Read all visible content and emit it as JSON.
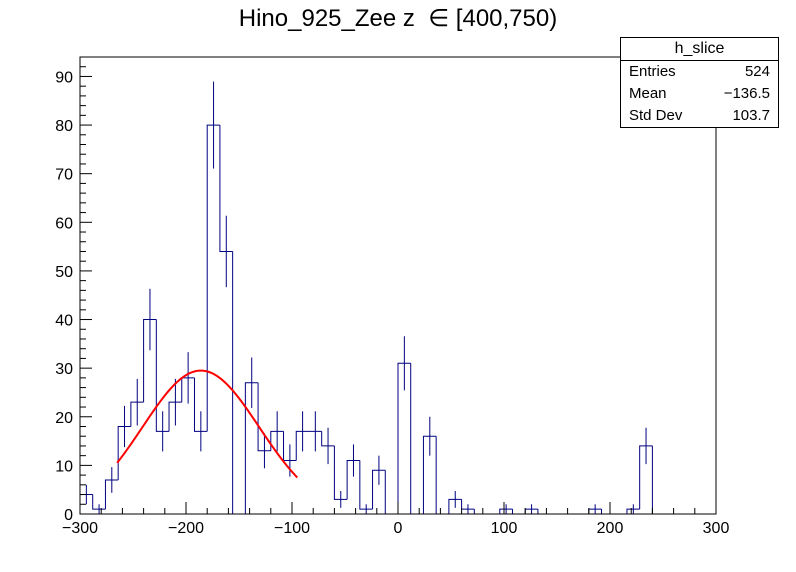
{
  "chart_data": {
    "type": "bar",
    "title": "Hino_925_Zee z  ∈ [400,750)",
    "xlabel": "",
    "ylabel": "",
    "xlim": [
      -300,
      300
    ],
    "ylim": [
      0,
      94
    ],
    "bin_width": 12,
    "bins_low_edge": [
      -300,
      -288,
      -276,
      -264,
      -252,
      -240,
      -228,
      -216,
      -204,
      -192,
      -180,
      -168,
      -156,
      -144,
      -132,
      -120,
      -108,
      -96,
      -84,
      -72,
      -60,
      -48,
      -36,
      -24,
      -12,
      0,
      12,
      24,
      36,
      48,
      60,
      72,
      84,
      96,
      108,
      120,
      132,
      144,
      156,
      168,
      180,
      192,
      204,
      216,
      228,
      240,
      252,
      264,
      276,
      288
    ],
    "values": [
      4,
      1,
      7,
      18,
      23,
      40,
      17,
      23,
      28,
      17,
      80,
      54,
      0,
      27,
      13,
      17,
      11,
      17,
      17,
      14,
      3,
      11,
      1,
      9,
      0,
      31,
      0,
      16,
      0,
      3,
      1,
      0,
      0,
      1,
      0,
      1,
      0,
      0,
      0,
      0,
      1,
      0,
      0,
      1,
      14,
      0,
      0,
      0,
      0,
      0
    ],
    "x_ticks": [
      -300,
      -200,
      -100,
      0,
      100,
      200,
      300
    ],
    "x_tick_labels": [
      "−300",
      "−200",
      "−100",
      "0",
      "100",
      "200",
      "300"
    ],
    "y_ticks": [
      0,
      10,
      20,
      30,
      40,
      50,
      60,
      70,
      80,
      90
    ],
    "y_tick_labels": [
      "0",
      "10",
      "20",
      "30",
      "40",
      "50",
      "60",
      "70",
      "80",
      "90"
    ],
    "fit": {
      "type": "gaussian",
      "amplitude": 29.5,
      "mean": -186,
      "sigma": 55,
      "x_range": [
        -265,
        -95
      ],
      "color": "#ff0000"
    },
    "hist_color": "#000080",
    "grid": false
  },
  "stats": {
    "name": "h_slice",
    "rows": [
      {
        "label": "Entries",
        "value": "524"
      },
      {
        "label": "Mean",
        "value": "−136.5"
      },
      {
        "label": "Std Dev",
        "value": "103.7"
      }
    ]
  }
}
